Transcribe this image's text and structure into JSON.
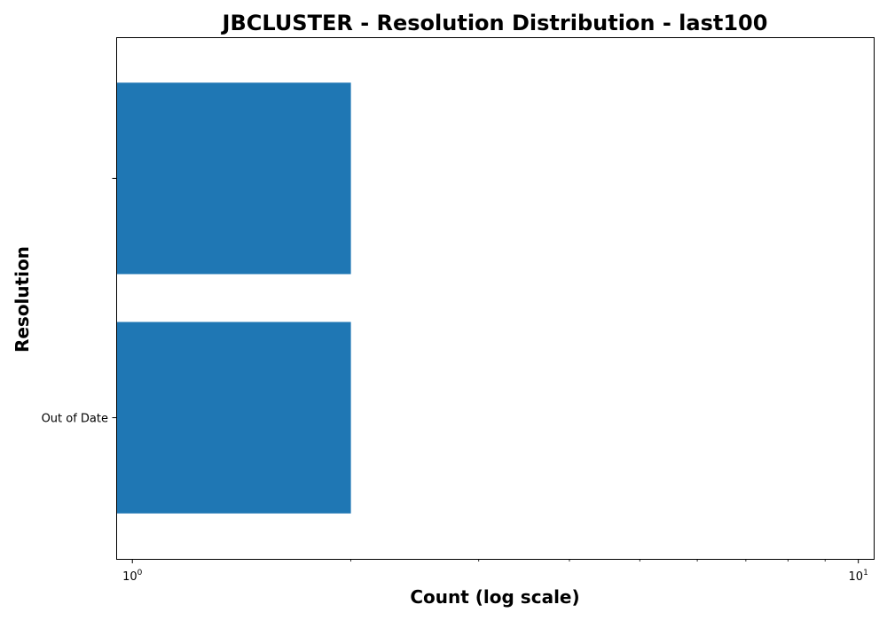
{
  "chart_data": {
    "type": "bar",
    "orientation": "horizontal",
    "title": "JBCLUSTER - Resolution Distribution - last100",
    "xlabel": "Count (log scale)",
    "ylabel": "Resolution",
    "x_scale": "log",
    "xlim": [
      0.95,
      10.5
    ],
    "categories": [
      "Out of Date",
      ""
    ],
    "values": [
      2,
      2
    ],
    "x_major_ticks": [
      {
        "value": 1,
        "base": "10",
        "exp": "0"
      },
      {
        "value": 10,
        "base": "10",
        "exp": "1"
      }
    ],
    "x_minor_ticks": [
      2,
      3,
      4,
      5,
      6,
      7,
      8,
      9
    ],
    "bar_color": "#1f77b4",
    "grid": false
  }
}
